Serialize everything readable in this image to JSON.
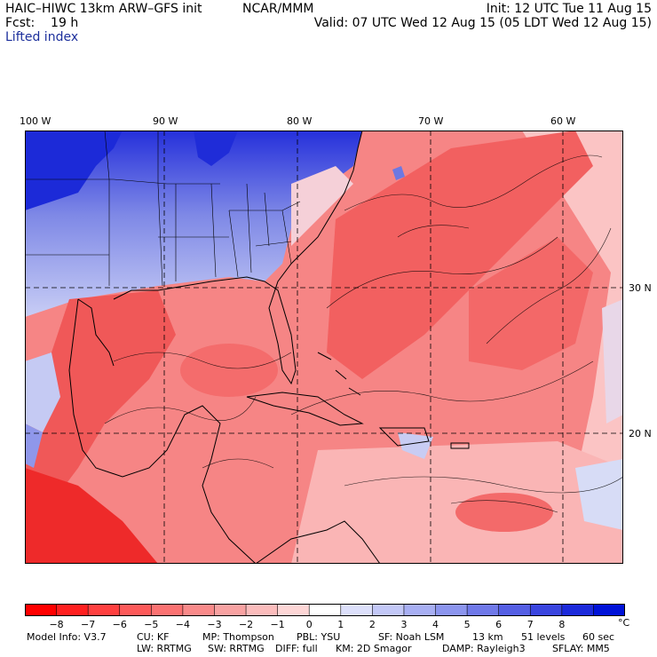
{
  "header": {
    "title_left": "HAIC–HIWC 13km ARW–GFS init",
    "title_center": "NCAR/MMM",
    "init": "Init: 12 UTC Tue 11 Aug 15",
    "fcst": "Fcst:    19 h",
    "valid": "Valid: 07 UTC Wed 12 Aug 15 (05 LDT Wed 12 Aug 15)",
    "variable": "Lifted index"
  },
  "map": {
    "lon_labels": [
      "100 W",
      "90 W",
      "80 W",
      "70 W",
      "60 W"
    ],
    "lat_labels": [
      "30 N",
      "20 N"
    ],
    "colors": {
      "strong_negative": "#ee1c1c",
      "negative": "#f46a6a",
      "weak_negative": "#fbb3b3",
      "neutral": "#ffffff",
      "weak_positive": "#c5cbf5",
      "positive": "#7f8ae6",
      "strong_positive": "#1f2cd8"
    }
  },
  "colorbar": {
    "labels": [
      "−8",
      "−7",
      "−6",
      "−5",
      "−4",
      "−3",
      "−2",
      "−1",
      "0",
      "1",
      "2",
      "3",
      "4",
      "5",
      "6",
      "7",
      "8"
    ],
    "unit": "°C",
    "colors": [
      "#ff0000",
      "#ff2020",
      "#ff4040",
      "#fd5a5a",
      "#fb7272",
      "#f98a8a",
      "#f8a2a2",
      "#fbbcbc",
      "#fdd6d6",
      "#ffffff",
      "#dde0fb",
      "#c3c8f7",
      "#a8aff3",
      "#8c95ee",
      "#7079e9",
      "#555fe4",
      "#3a45df",
      "#1c2adb",
      "#0012d8"
    ]
  },
  "model_info": {
    "line1": [
      "Model Info: V3.7",
      "CU: KF",
      "MP: Thompson",
      "PBL: YSU",
      "SF: Noah LSM",
      "13 km",
      "51 levels",
      "60 sec"
    ],
    "line2": [
      "LW: RRTMG",
      "SW: RRTMG",
      "DIFF: full",
      "KM: 2D Smagor",
      "DAMP: Rayleigh3",
      "SFLAY: MM5"
    ]
  }
}
